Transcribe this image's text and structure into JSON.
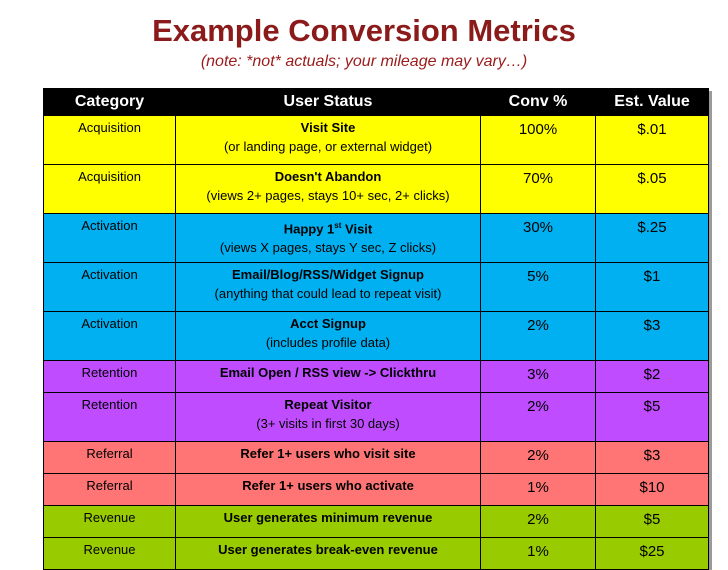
{
  "title": "Example Conversion Metrics",
  "subtitle": "(note: *not* actuals; your mileage may vary…)",
  "table": {
    "headers": [
      "Category",
      "User Status",
      "Conv %",
      "Est. Value"
    ],
    "rows": [
      {
        "category": "Acquisition",
        "status": "Visit Site",
        "detail": "(or landing page, or external widget)",
        "conv": "100%",
        "value": "$.01"
      },
      {
        "category": "Acquisition",
        "status": "Doesn't Abandon",
        "detail": "(views 2+ pages, stays 10+ sec, 2+ clicks)",
        "conv": "70%",
        "value": "$.05"
      },
      {
        "category": "Activation",
        "status": "Happy 1",
        "status_sup": "st",
        "status_tail": " Visit",
        "detail": "(views X pages, stays Y sec, Z clicks)",
        "conv": "30%",
        "value": "$.25"
      },
      {
        "category": "Activation",
        "status": "Email/Blog/RSS/Widget Signup",
        "detail": "(anything that could lead to repeat visit)",
        "conv": "5%",
        "value": "$1"
      },
      {
        "category": "Activation",
        "status": "Acct Signup",
        "detail": "(includes profile data)",
        "conv": "2%",
        "value": "$3"
      },
      {
        "category": "Retention",
        "status": "Email Open / RSS view -> Clickthru",
        "conv": "3%",
        "value": "$2"
      },
      {
        "category": "Retention",
        "status": "Repeat Visitor",
        "detail": "(3+ visits in first 30 days)",
        "conv": "2%",
        "value": "$5"
      },
      {
        "category": "Referral",
        "status": "Refer 1+ users who visit site",
        "conv": "2%",
        "value": "$3"
      },
      {
        "category": "Referral",
        "status": "Refer 1+ users who activate",
        "conv": "1%",
        "value": "$10"
      },
      {
        "category": "Revenue",
        "status": "User generates minimum revenue",
        "conv": "2%",
        "value": "$5"
      },
      {
        "category": "Revenue",
        "status": "User generates break-even revenue",
        "conv": "1%",
        "value": "$25"
      }
    ]
  }
}
